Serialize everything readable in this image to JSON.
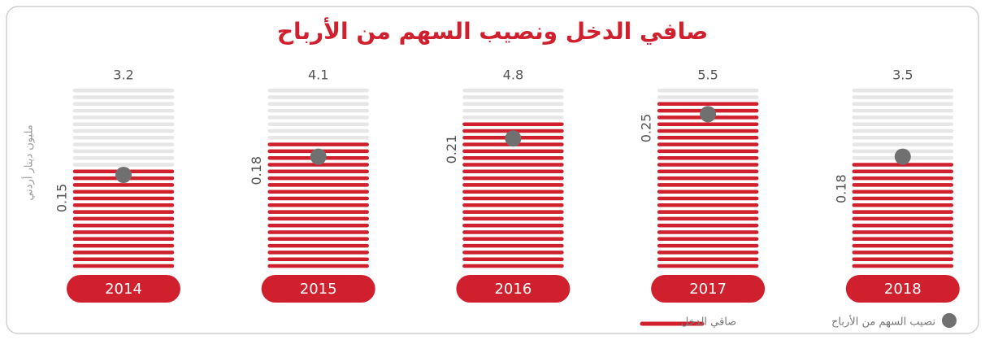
{
  "chart_data": {
    "type": "bar",
    "title": "صافي الدخل ونصيب السهم من الأرباح",
    "y_axis_label": "مليون دينار أردني",
    "categories": [
      "2014",
      "2015",
      "2016",
      "2017",
      "2018"
    ],
    "series": [
      {
        "name": "صافي الدخل",
        "color": "#d0202e",
        "values": [
          3.2,
          4.1,
          4.8,
          5.5,
          3.5
        ]
      },
      {
        "name": "نصيب السهم من الأرباح",
        "color": "#707070",
        "values": [
          0.15,
          0.18,
          0.21,
          0.25,
          0.18
        ],
        "axis": "y2"
      }
    ],
    "ylim": [
      0,
      6
    ],
    "y2lim": [
      0,
      0.3
    ]
  }
}
